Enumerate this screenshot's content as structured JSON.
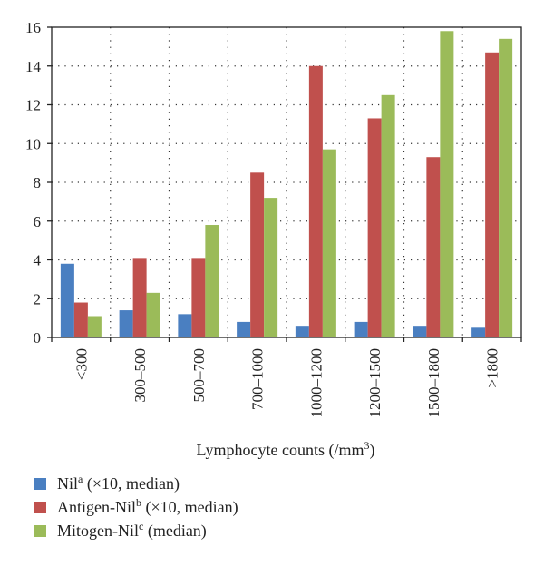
{
  "chart_data": {
    "type": "bar",
    "categories": [
      "<300",
      "300–500",
      "500–700",
      "700–1000",
      "1000–1200",
      "1200–1500",
      "1500–1800",
      ">1800"
    ],
    "series": [
      {
        "name": "Nil",
        "sup": "a",
        "suffix": " (×10, median)",
        "color": "#4a7fc1",
        "values": [
          3.8,
          1.4,
          1.2,
          0.8,
          0.6,
          0.8,
          0.6,
          0.5
        ]
      },
      {
        "name": "Antigen-Nil",
        "sup": "b",
        "suffix": " (×10, median)",
        "color": "#c0504d",
        "values": [
          1.8,
          4.1,
          4.1,
          8.5,
          14.0,
          11.3,
          9.3,
          14.7
        ]
      },
      {
        "name": "Mitogen-Nil",
        "sup": "c",
        "suffix": " (median)",
        "color": "#9bbb59",
        "values": [
          1.1,
          2.3,
          5.8,
          7.2,
          9.7,
          12.5,
          15.8,
          15.4
        ]
      }
    ],
    "yticks": [
      0,
      2,
      4,
      6,
      8,
      10,
      12,
      14,
      16
    ],
    "ylim": [
      0,
      16
    ],
    "xlabel": "Lymphocyte counts (/mm",
    "xlabel_sup": "3",
    "xlabel_tail": ")",
    "grid": true,
    "legend_position": "bottom-left"
  }
}
